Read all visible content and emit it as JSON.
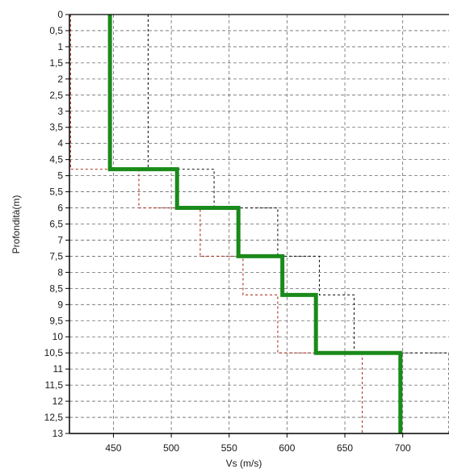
{
  "chart_data": {
    "type": "line",
    "title": "",
    "xlabel": "Vs (m/s)",
    "ylabel": "Profondità(m)",
    "xlim": [
      412,
      740
    ],
    "ylim": [
      13,
      0
    ],
    "x_ticks": [
      450,
      500,
      550,
      600,
      650,
      700
    ],
    "y_ticks": [
      "0",
      "0,5",
      "1",
      "1,5",
      "2",
      "2,5",
      "3",
      "3,5",
      "4",
      "4,5",
      "5",
      "5,5",
      "6",
      "6,5",
      "7",
      "7,5",
      "8",
      "8,5",
      "9",
      "9,5",
      "10",
      "10,5",
      "11",
      "11,5",
      "12",
      "12,5",
      "13"
    ],
    "grid": true,
    "colors": {
      "main": "#1a8a1a",
      "upper": "#1a1a1a",
      "lower": "#b03020"
    },
    "series": [
      {
        "profile": "main",
        "steps": [
          {
            "vs": 447,
            "from": 0,
            "to": 4.8
          },
          {
            "vs": 505,
            "from": 4.8,
            "to": 6.0
          },
          {
            "vs": 558,
            "from": 6.0,
            "to": 7.5
          },
          {
            "vs": 596,
            "from": 7.5,
            "to": 8.7
          },
          {
            "vs": 625,
            "from": 8.7,
            "to": 10.5
          },
          {
            "vs": 698,
            "from": 10.5,
            "to": 13.0
          }
        ]
      },
      {
        "profile": "upper",
        "steps": [
          {
            "vs": 480,
            "from": 0,
            "to": 4.8
          },
          {
            "vs": 537,
            "from": 4.8,
            "to": 6.0
          },
          {
            "vs": 592,
            "from": 6.0,
            "to": 7.5
          },
          {
            "vs": 628,
            "from": 7.5,
            "to": 8.7
          },
          {
            "vs": 658,
            "from": 8.7,
            "to": 10.5
          },
          {
            "vs": 740,
            "from": 10.5,
            "to": 13.0
          }
        ]
      },
      {
        "profile": "lower",
        "steps": [
          {
            "vs": 413,
            "from": 0,
            "to": 4.8
          },
          {
            "vs": 472,
            "from": 4.8,
            "to": 6.0
          },
          {
            "vs": 525,
            "from": 6.0,
            "to": 7.5
          },
          {
            "vs": 562,
            "from": 7.5,
            "to": 8.7
          },
          {
            "vs": 592,
            "from": 8.7,
            "to": 10.5
          },
          {
            "vs": 665,
            "from": 10.5,
            "to": 13.0
          }
        ]
      }
    ]
  }
}
